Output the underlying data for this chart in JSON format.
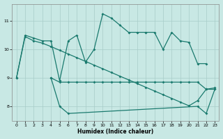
{
  "color": "#1a7a6e",
  "bg_color": "#c8e8e4",
  "grid_color": "#a8ccc8",
  "xlabel": "Humidex (Indice chaleur)",
  "xlim": [
    -0.5,
    23.5
  ],
  "ylim": [
    7.5,
    11.6
  ],
  "yticks": [
    8,
    9,
    10,
    11
  ],
  "xticks": [
    0,
    1,
    2,
    3,
    4,
    5,
    6,
    7,
    8,
    9,
    10,
    11,
    12,
    13,
    14,
    15,
    16,
    17,
    18,
    19,
    20,
    21,
    22,
    23
  ],
  "line_upper_x": [
    0,
    1,
    2,
    3,
    4,
    5,
    6,
    7,
    8,
    9,
    10,
    11,
    12,
    13,
    14,
    15,
    16,
    17,
    18,
    19,
    20,
    21,
    22
  ],
  "line_upper_y": [
    9.0,
    10.5,
    10.4,
    10.3,
    10.3,
    8.9,
    10.3,
    10.5,
    9.55,
    10.0,
    11.25,
    11.1,
    10.85,
    10.6,
    10.6,
    10.6,
    10.6,
    10.0,
    10.6,
    10.3,
    10.25,
    9.5,
    9.5
  ],
  "line_trend_x": [
    0,
    1,
    2,
    3,
    4,
    5,
    6,
    7,
    8,
    9,
    10,
    11,
    12,
    13,
    14,
    15,
    16,
    17,
    18,
    19,
    20,
    21,
    22,
    23
  ],
  "line_trend_y": [
    9.0,
    10.45,
    10.3,
    10.22,
    10.1,
    9.97,
    9.84,
    9.71,
    9.58,
    9.45,
    9.32,
    9.19,
    9.06,
    8.93,
    8.8,
    8.67,
    8.54,
    8.41,
    8.28,
    8.15,
    8.02,
    8.2,
    8.6,
    8.65
  ],
  "line_lower_x": [
    4,
    5,
    6,
    7,
    8,
    9,
    10,
    11,
    12,
    13,
    14,
    15,
    16,
    17,
    18,
    19,
    20,
    21,
    22,
    23
  ],
  "line_lower_y": [
    9.0,
    8.85,
    8.85,
    8.85,
    8.85,
    8.85,
    8.85,
    8.85,
    8.85,
    8.85,
    8.85,
    8.85,
    8.85,
    8.85,
    8.85,
    8.85,
    8.85,
    8.85,
    8.6,
    8.6
  ],
  "line_min_x": [
    4,
    5,
    6,
    21,
    22,
    23
  ],
  "line_min_y": [
    9.0,
    8.0,
    7.75,
    8.0,
    7.75,
    8.6
  ]
}
